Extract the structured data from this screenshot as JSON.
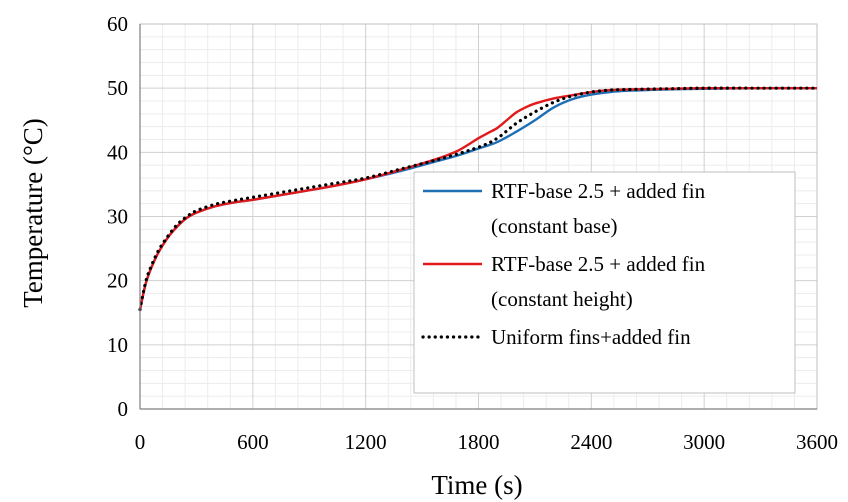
{
  "chart_data": {
    "type": "line",
    "xlabel": "Time (s)",
    "ylabel": "Temperature (°C)",
    "xlim": [
      0,
      3600
    ],
    "ylim": [
      0,
      60
    ],
    "xticks": [
      0,
      600,
      1200,
      1800,
      2400,
      3000,
      3600
    ],
    "yticks": [
      0,
      10,
      20,
      30,
      40,
      50,
      60
    ],
    "grid": "major and minor",
    "legend_position": "right",
    "series": [
      {
        "name": "RTF-base 2.5 + added fin (constant base)",
        "color": "#1f6fb5",
        "style": "solid",
        "x": [
          0,
          30,
          60,
          100,
          150,
          200,
          250,
          300,
          400,
          500,
          600,
          800,
          1000,
          1200,
          1400,
          1600,
          1700,
          1800,
          1900,
          2000,
          2100,
          2200,
          2300,
          2400,
          2500,
          2600,
          2800,
          3000,
          3300,
          3600
        ],
        "y": [
          15.5,
          19.5,
          22,
          24.5,
          26.8,
          28.5,
          29.8,
          30.6,
          31.6,
          32.2,
          32.6,
          33.6,
          34.6,
          35.8,
          37.2,
          38.8,
          39.6,
          40.6,
          41.6,
          43.2,
          45.0,
          47.0,
          48.3,
          49.0,
          49.4,
          49.6,
          49.8,
          49.9,
          50.0,
          50.0
        ]
      },
      {
        "name": "RTF-base 2.5 + added fin (constant height)",
        "color": "#e31a1c",
        "style": "solid",
        "x": [
          0,
          30,
          60,
          100,
          150,
          200,
          250,
          300,
          400,
          500,
          600,
          800,
          1000,
          1200,
          1400,
          1600,
          1700,
          1800,
          1850,
          1900,
          1950,
          2000,
          2050,
          2100,
          2200,
          2300,
          2400,
          2500,
          2600,
          2800,
          3000,
          3300,
          3600
        ],
        "y": [
          15.5,
          19.5,
          22,
          24.5,
          26.8,
          28.5,
          29.8,
          30.6,
          31.6,
          32.2,
          32.6,
          33.6,
          34.6,
          35.8,
          37.4,
          39.2,
          40.4,
          42.2,
          43.0,
          43.8,
          45.0,
          46.2,
          47.0,
          47.6,
          48.4,
          48.9,
          49.4,
          49.7,
          49.8,
          49.9,
          50.0,
          50.0,
          50.0
        ]
      },
      {
        "name": "Uniform fins+added fin",
        "color": "#000000",
        "style": "dotted",
        "x": [
          0,
          30,
          60,
          100,
          150,
          200,
          250,
          300,
          400,
          500,
          600,
          800,
          1000,
          1200,
          1400,
          1600,
          1800,
          1900,
          2000,
          2100,
          2200,
          2300,
          2400,
          2500,
          2600,
          2800,
          3000,
          3300,
          3600
        ],
        "y": [
          15.5,
          19.8,
          22.3,
          24.8,
          27.0,
          28.8,
          30.0,
          30.9,
          31.9,
          32.5,
          33.0,
          34.0,
          35.0,
          36.0,
          37.5,
          39.0,
          40.8,
          42.2,
          44.5,
          46.3,
          47.8,
          48.8,
          49.4,
          49.7,
          49.8,
          49.9,
          50.0,
          50.0,
          50.0
        ]
      }
    ],
    "legend_lines": [
      [
        "RTF-base 2.5 + added fin",
        "(constant base)"
      ],
      [
        "RTF-base 2.5 + added fin",
        "(constant height)"
      ],
      [
        "Uniform fins+added fin"
      ]
    ]
  }
}
